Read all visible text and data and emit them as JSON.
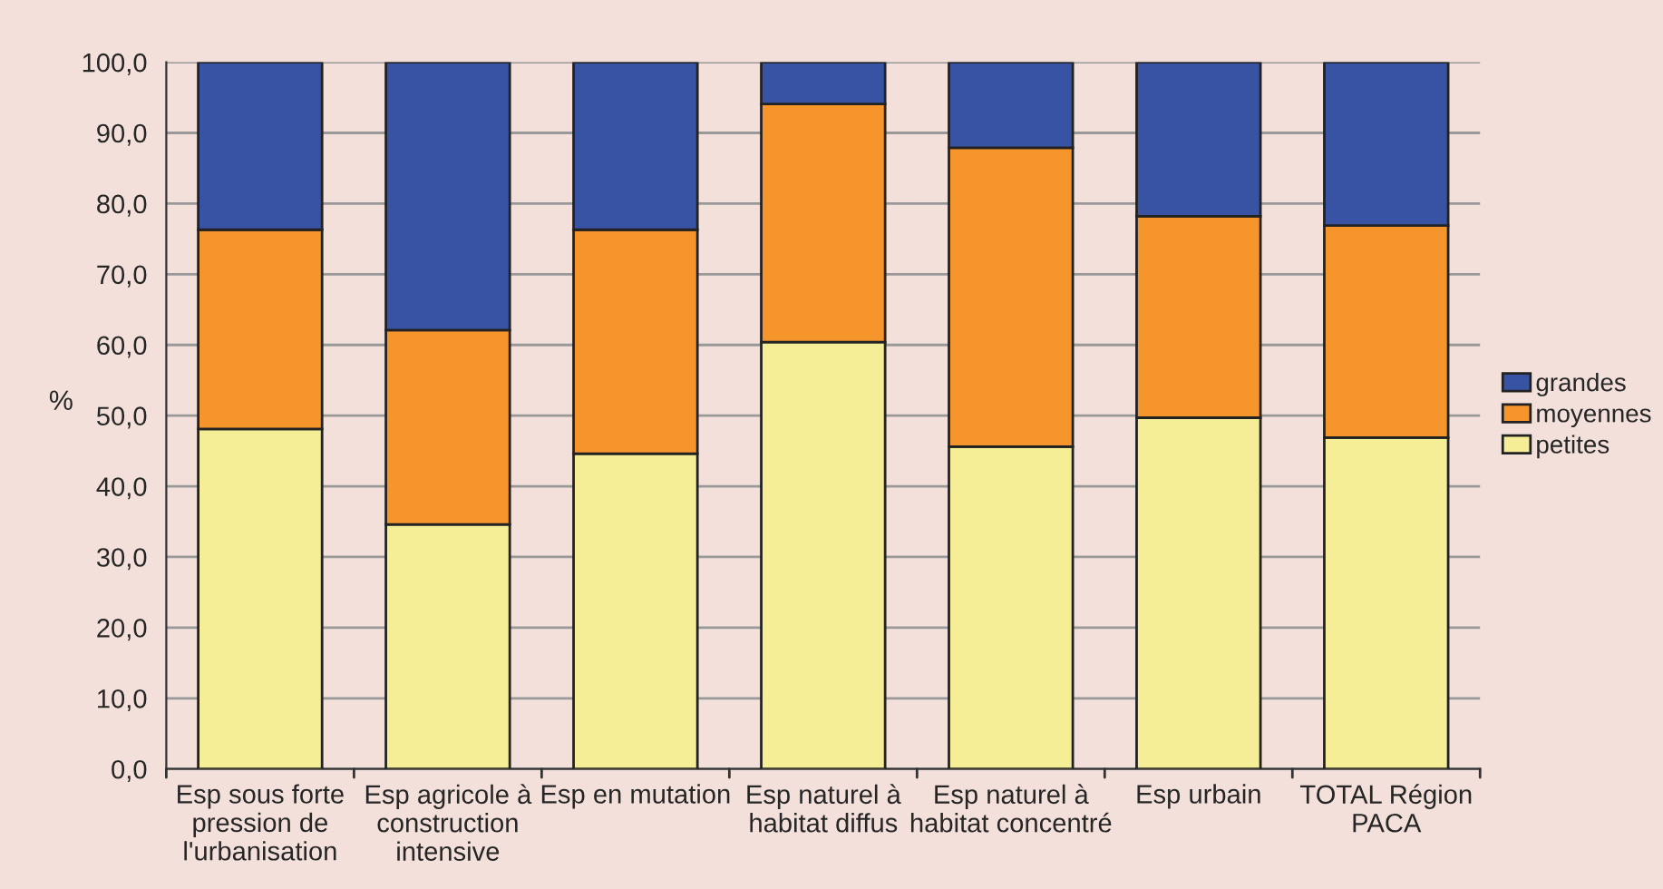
{
  "chart_data": {
    "type": "bar",
    "stacked": true,
    "ylabel": "%",
    "categories": [
      "Esp sous forte\npression de\nl'urbanisation",
      "Esp agricole à\nconstruction\nintensive",
      "Esp en mutation",
      "Esp naturel à\nhabitat diffus",
      "Esp naturel à\nhabitat concentré",
      "Esp urbain",
      "TOTAL Région\nPACA"
    ],
    "series": [
      {
        "name": "petites",
        "color": "#f5ee96",
        "values": [
          48.1,
          34.6,
          44.6,
          60.4,
          45.6,
          49.7,
          46.9
        ]
      },
      {
        "name": "moyennes",
        "color": "#f7952d",
        "values": [
          28.2,
          27.5,
          31.7,
          33.7,
          42.3,
          28.5,
          30.0
        ]
      },
      {
        "name": "grandes",
        "color": "#3953a4",
        "values": [
          23.7,
          37.9,
          23.7,
          5.9,
          12.1,
          21.8,
          23.1
        ]
      }
    ],
    "ylim": [
      0,
      100
    ],
    "yticks": [
      {
        "value": 0,
        "label": "0,0"
      },
      {
        "value": 10,
        "label": "10,0"
      },
      {
        "value": 20,
        "label": "20,0"
      },
      {
        "value": 30,
        "label": "30,0"
      },
      {
        "value": 40,
        "label": "40,0"
      },
      {
        "value": 50,
        "label": "50,0"
      },
      {
        "value": 60,
        "label": "60,0"
      },
      {
        "value": 70,
        "label": "70,0"
      },
      {
        "value": 80,
        "label": "80,0"
      },
      {
        "value": 90,
        "label": "90,0"
      },
      {
        "value": 100,
        "label": "100,0"
      }
    ],
    "grid": "y",
    "legend": "right"
  }
}
